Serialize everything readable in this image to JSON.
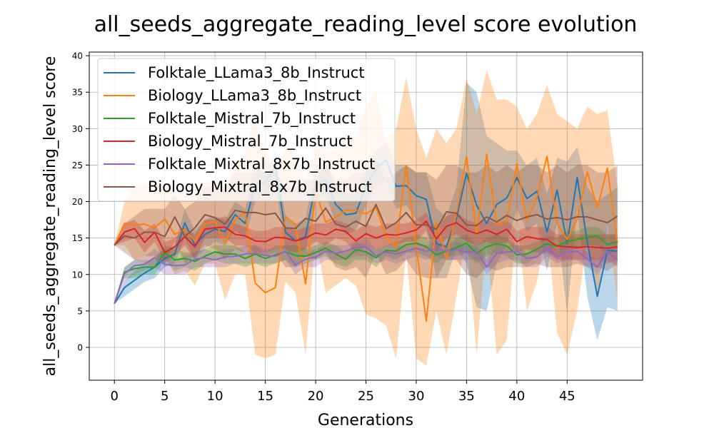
{
  "chart_data": {
    "type": "line",
    "title": "all_seeds_aggregate_reading_level score evolution",
    "xlabel": "Generations",
    "ylabel": "all_seeds_aggregate_reading_level score",
    "xlim": [
      -2.5,
      52.5
    ],
    "ylim": [
      -4.5,
      40.5
    ],
    "xticks": [
      0,
      5,
      10,
      15,
      20,
      25,
      30,
      35,
      40,
      45
    ],
    "yticks": [
      0,
      5,
      10,
      15,
      20,
      25,
      30,
      35,
      40
    ],
    "grid": true,
    "legend_position": "top-left",
    "x": [
      0,
      1,
      2,
      3,
      4,
      5,
      6,
      7,
      8,
      9,
      10,
      11,
      12,
      13,
      14,
      15,
      16,
      17,
      18,
      19,
      20,
      21,
      22,
      23,
      24,
      25,
      26,
      27,
      28,
      29,
      30,
      31,
      32,
      33,
      34,
      35,
      36,
      37,
      38,
      39,
      40,
      41,
      42,
      43,
      44,
      45,
      46,
      47,
      48,
      49,
      50
    ],
    "series": [
      {
        "name": "Folktale_LLama3_8b_Instruct",
        "color": "#1f77b4",
        "values": [
          6,
          8.2,
          9.2,
          10.2,
          11,
          12.2,
          12.8,
          17.1,
          14,
          15.5,
          16.2,
          15.9,
          18.2,
          17,
          22.4,
          22.6,
          24.8,
          15.8,
          14.6,
          15.2,
          22.4,
          23,
          19.6,
          18.2,
          18.4,
          22.1,
          24.5,
          25.7,
          22.1,
          22.2,
          20.8,
          20.3,
          14.2,
          13.8,
          17.7,
          23.9,
          19.5,
          17,
          19.6,
          20.5,
          23.3,
          20.4,
          21.4,
          15.8,
          21.6,
          14.2,
          23.3,
          14.5,
          7,
          13.3,
          13.2
        ],
        "upper": [
          6,
          9,
          10.5,
          11.5,
          12.5,
          13.5,
          14,
          19,
          16,
          17.5,
          18,
          17.5,
          20,
          19,
          25,
          24,
          27,
          18,
          17,
          17.5,
          25,
          25.5,
          22,
          21,
          21,
          24.5,
          27,
          28,
          25,
          25,
          24,
          24,
          19,
          18,
          22,
          36.3,
          35,
          29,
          28,
          27,
          27,
          25,
          26,
          21,
          26,
          25.5,
          27.5,
          22,
          20,
          21,
          22
        ],
        "lower": [
          6,
          7,
          8,
          9,
          9.5,
          11,
          11.5,
          15,
          12,
          13.5,
          14.5,
          14,
          16,
          15,
          20,
          21,
          22.5,
          13.5,
          12.5,
          13,
          20,
          21,
          17,
          15.5,
          16,
          19.5,
          22,
          23,
          19,
          19.5,
          17.5,
          16.5,
          9.5,
          9.5,
          13.5,
          11.5,
          5.5,
          5,
          11.5,
          14,
          19,
          16,
          17,
          10.5,
          17,
          4.5,
          19,
          7,
          1,
          5.5,
          5
        ]
      },
      {
        "name": "Biology_LLama3_8b_Instruct",
        "color": "#ff7f0e",
        "values": [
          14,
          17,
          16.8,
          16.9,
          16.4,
          17.6,
          15.5,
          16.2,
          14.6,
          17,
          17.3,
          14.3,
          17.5,
          18.6,
          8.8,
          7.5,
          8.2,
          18,
          16.8,
          8.7,
          21.5,
          17.2,
          17.8,
          18.8,
          18.8,
          18.3,
          19.2,
          15.2,
          13.8,
          24.9,
          13.8,
          3.6,
          17.2,
          12.2,
          18.4,
          26.2,
          15.5,
          26.5,
          16.8,
          17.3,
          25.2,
          17.4,
          20.6,
          26.2,
          17,
          14.8,
          17.6,
          24.1,
          19.1,
          24.6,
          14.3
        ],
        "upper": [
          14,
          20,
          22,
          22.5,
          22,
          22.5,
          21,
          22,
          21,
          22.5,
          23,
          22,
          25,
          27,
          32,
          27,
          25,
          27,
          26,
          23,
          28,
          27,
          27,
          28,
          29,
          33,
          35,
          28,
          30,
          37,
          30,
          26,
          30,
          28,
          30,
          37,
          32,
          38,
          34,
          34,
          33,
          30,
          32,
          36,
          32,
          31,
          30,
          33,
          32,
          32.5,
          22
        ],
        "lower": [
          14,
          14,
          12,
          11.5,
          11,
          12.5,
          10,
          10.5,
          8.5,
          11.5,
          11.5,
          6.5,
          10,
          10,
          -1,
          -1.5,
          -1,
          9,
          7.5,
          -1,
          15,
          7.5,
          8.5,
          9.5,
          8.5,
          4.5,
          4,
          3,
          -1.5,
          13,
          -1.5,
          -2.5,
          5,
          -1,
          7,
          15.5,
          -1,
          15,
          -1,
          1,
          17.5,
          5,
          9,
          16.5,
          2,
          -1,
          5,
          15,
          6.5,
          17,
          6.5
        ]
      },
      {
        "name": "Folktale_Mistral_7b_Instruct",
        "color": "#2ca02c",
        "values": [
          6,
          10.3,
          10.8,
          11,
          11,
          13,
          12,
          12.2,
          11.8,
          12.5,
          13.1,
          12.8,
          12.8,
          12.2,
          12.8,
          12.2,
          12.7,
          13.1,
          12.6,
          12.5,
          13,
          13.6,
          12.8,
          12.1,
          13.4,
          13.1,
          12.3,
          13.3,
          13.2,
          14.1,
          14.3,
          13.8,
          12.7,
          13.2,
          13.7,
          14.3,
          12.9,
          13.8,
          14.2,
          13.9,
          12.7,
          12.8,
          13.5,
          14.2,
          13.9,
          14.5,
          14.8,
          15.1,
          15.3,
          14.1,
          14.5
        ],
        "upper": [
          6,
          11,
          12,
          12,
          12,
          14,
          13.5,
          13,
          13,
          13.5,
          14,
          14,
          14,
          13,
          14,
          13,
          14,
          14,
          14,
          13.5,
          14,
          14.5,
          14,
          13,
          14.5,
          14,
          13.5,
          14,
          14.5,
          15,
          15.5,
          15,
          14,
          14,
          15,
          15.5,
          14,
          15,
          15.5,
          15,
          14,
          14,
          14.5,
          15.5,
          15,
          16,
          16,
          16.5,
          16.5,
          15.5,
          15.5
        ],
        "lower": [
          6,
          9.5,
          9.5,
          10,
          10,
          12,
          10.5,
          11,
          10.5,
          11.5,
          12,
          11.5,
          11.5,
          11,
          11.5,
          11,
          11.5,
          12,
          11,
          11.5,
          12,
          12.5,
          11.5,
          11,
          12,
          12,
          11,
          12.5,
          12,
          13,
          13,
          12.5,
          11.5,
          12.5,
          12.5,
          13,
          11.5,
          12.5,
          13,
          12.5,
          11.5,
          11.5,
          12.5,
          13,
          12.5,
          13.5,
          13.5,
          14,
          14,
          12.5,
          13.5
        ]
      },
      {
        "name": "Biology_Mistral_7b_Instruct",
        "color": "#d62728",
        "values": [
          14,
          15.8,
          16.3,
          14.4,
          15.8,
          13,
          13.8,
          15.2,
          13.8,
          16.2,
          16.4,
          16.5,
          15.5,
          15.3,
          14.6,
          14.5,
          15.1,
          15,
          14.6,
          15,
          15.7,
          15.4,
          16.2,
          15.9,
          14.6,
          15.6,
          15,
          15.5,
          15.4,
          15.7,
          16.1,
          17.3,
          14.9,
          16.6,
          17.1,
          16.1,
          15.6,
          16.1,
          15.5,
          16.2,
          14.5,
          15.2,
          14.9,
          14.8,
          13.9,
          13.8,
          13.7,
          13.8,
          13.7,
          13.6,
          13.8
        ],
        "upper": [
          14,
          17,
          17.5,
          16,
          17,
          14.5,
          15,
          16.5,
          15.5,
          17.5,
          17.5,
          18,
          17,
          16.5,
          16,
          16,
          16.5,
          16.5,
          16,
          16.5,
          17,
          17,
          17.5,
          17,
          16,
          17,
          16.5,
          17,
          17,
          17,
          17.5,
          18.5,
          16.5,
          18,
          18.5,
          17.5,
          17,
          17.5,
          17,
          17.5,
          16,
          16.5,
          16.5,
          16.5,
          15.5,
          15.5,
          15.5,
          15.5,
          15.5,
          15.5,
          15.5
        ],
        "lower": [
          14,
          14.5,
          15,
          13,
          14.5,
          11.5,
          12.5,
          14,
          12,
          15,
          15,
          15,
          14,
          14,
          13,
          13,
          13.5,
          13.5,
          13,
          13.5,
          14.5,
          14,
          15,
          14.5,
          13,
          14,
          13.5,
          14,
          14,
          14.5,
          14.5,
          16,
          13,
          15,
          15.5,
          14.5,
          14,
          14.5,
          14,
          14.5,
          13,
          13.5,
          13,
          13,
          12,
          12,
          12,
          12,
          12,
          11.5,
          12
        ]
      },
      {
        "name": "Folktale_Mixtral_8x7b_Instruct",
        "color": "#9467bd",
        "values": [
          6,
          10.1,
          11.2,
          11.4,
          12.3,
          11.4,
          11.2,
          11.3,
          12.1,
          12.3,
          12,
          12.4,
          12.5,
          12.8,
          12.9,
          12.6,
          12.5,
          13.2,
          11.3,
          12.1,
          12.4,
          13.2,
          12.9,
          13.2,
          13.7,
          13.8,
          12.6,
          13.1,
          12.8,
          13.2,
          13.6,
          13.2,
          13.5,
          13.2,
          13.4,
          13.1,
          13.1,
          11,
          12.9,
          13.1,
          13.2,
          12.2,
          12.4,
          13.7,
          12.4,
          13.1,
          13.2,
          12.1,
          11,
          13.2,
          12
        ],
        "upper": [
          6,
          11,
          12,
          12.5,
          13.5,
          12.5,
          12,
          12.5,
          13,
          13.5,
          13,
          13.5,
          13.5,
          14,
          14,
          13.5,
          13.5,
          14,
          12.5,
          13,
          13.5,
          14,
          14,
          14,
          14.5,
          15,
          13.5,
          14,
          14,
          14,
          14.5,
          14,
          14.5,
          14,
          14.5,
          14,
          14,
          12,
          14,
          14,
          14,
          13,
          13.5,
          14.5,
          13.5,
          14,
          14,
          13,
          12,
          14,
          13
        ],
        "lower": [
          6,
          9,
          10,
          10.5,
          11,
          10,
          10,
          10,
          11,
          11,
          11,
          11,
          11.5,
          11.5,
          11.5,
          11.5,
          11.5,
          12,
          10,
          11,
          11,
          12,
          12,
          12,
          12.5,
          12.5,
          11.5,
          12,
          11.5,
          12,
          12.5,
          12,
          12.5,
          12,
          12,
          12,
          12,
          10,
          11.5,
          12,
          12,
          11,
          11,
          12.5,
          11.5,
          12,
          12,
          11,
          10,
          12,
          11
        ]
      },
      {
        "name": "Biology_Mixtral_8x7b_Instruct",
        "color": "#8c564b",
        "values": [
          14,
          15.3,
          15,
          15.8,
          15.8,
          15.2,
          17.9,
          15.2,
          16.4,
          18.2,
          17.8,
          16.9,
          18.8,
          18.5,
          18.5,
          18.2,
          18.4,
          16.4,
          16.3,
          17.7,
          17.3,
          19.1,
          16.9,
          16.5,
          17.3,
          16.6,
          19.6,
          16.3,
          17.1,
          18.5,
          16.8,
          16.8,
          16.2,
          18.6,
          18.4,
          16.8,
          16.7,
          17.9,
          17.2,
          18.1,
          17.4,
          17.9,
          18.2,
          17.6,
          17.8,
          17.5,
          17.9,
          17.9,
          17.5,
          17.1,
          18
        ],
        "upper": [
          14,
          17,
          18,
          19,
          19,
          19,
          21,
          19,
          20,
          22,
          22,
          22,
          24,
          24,
          24,
          24,
          24,
          22,
          22,
          23,
          23,
          25,
          23,
          23,
          24,
          24,
          26,
          23,
          24,
          25,
          24,
          24,
          23,
          25,
          25,
          24,
          24,
          25,
          24,
          25,
          24,
          25,
          25,
          24,
          25,
          24,
          25,
          25,
          24,
          24,
          25
        ],
        "lower": [
          14,
          13,
          12,
          12.5,
          12.5,
          11.5,
          14.5,
          11.5,
          12.5,
          14,
          13.5,
          12,
          13.5,
          13,
          13,
          12.5,
          13,
          11,
          11,
          12.5,
          12,
          13,
          11,
          10.5,
          11,
          9.5,
          13,
          10,
          10.5,
          12,
          10,
          9.5,
          9.5,
          12,
          12,
          10,
          9.5,
          11,
          10.5,
          11,
          11,
          11,
          11.5,
          11,
          11,
          11,
          11.5,
          11,
          11,
          10.5,
          11.5
        ]
      }
    ]
  }
}
